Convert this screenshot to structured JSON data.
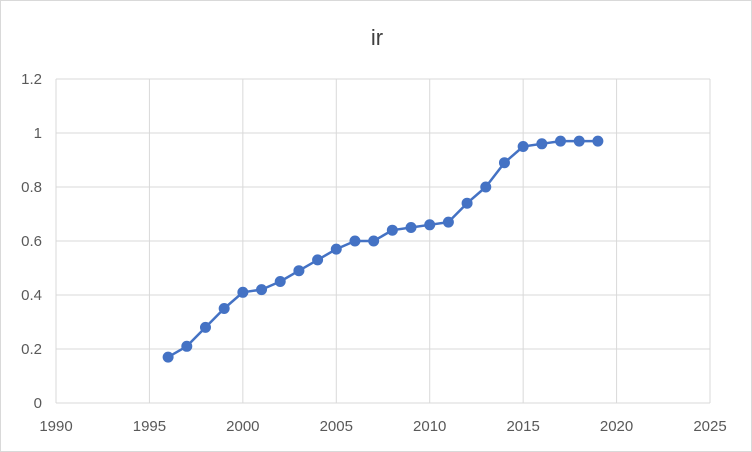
{
  "chart_data": {
    "type": "scatter",
    "mode": "lines+markers",
    "title": "ir",
    "xlabel": "",
    "ylabel": "",
    "xlim": [
      1990,
      2025
    ],
    "ylim": [
      0,
      1.2
    ],
    "x_ticks": [
      "1990",
      "1995",
      "2000",
      "2005",
      "2010",
      "2015",
      "2020",
      "2025"
    ],
    "y_ticks": [
      "0",
      "0.2",
      "0.4",
      "0.6",
      "0.8",
      "1",
      "1.2"
    ],
    "grid": true,
    "legend": "none",
    "series": [
      {
        "color": "#4472c4",
        "x": [
          1996,
          1997,
          1998,
          1999,
          2000,
          2001,
          2002,
          2003,
          2004,
          2005,
          2006,
          2007,
          2008,
          2009,
          2010,
          2011,
          2012,
          2013,
          2014,
          2015,
          2016,
          2017,
          2018,
          2019
        ],
        "y": [
          0.17,
          0.21,
          0.28,
          0.35,
          0.41,
          0.42,
          0.45,
          0.49,
          0.53,
          0.57,
          0.6,
          0.6,
          0.64,
          0.65,
          0.66,
          0.67,
          0.74,
          0.8,
          0.89,
          0.95,
          0.96,
          0.97,
          0.97,
          0.97
        ]
      }
    ]
  },
  "colors": {
    "gridline": "#d9d9d9",
    "axis_text": "#595959",
    "title_text": "#404040",
    "series": "#4472c4"
  }
}
